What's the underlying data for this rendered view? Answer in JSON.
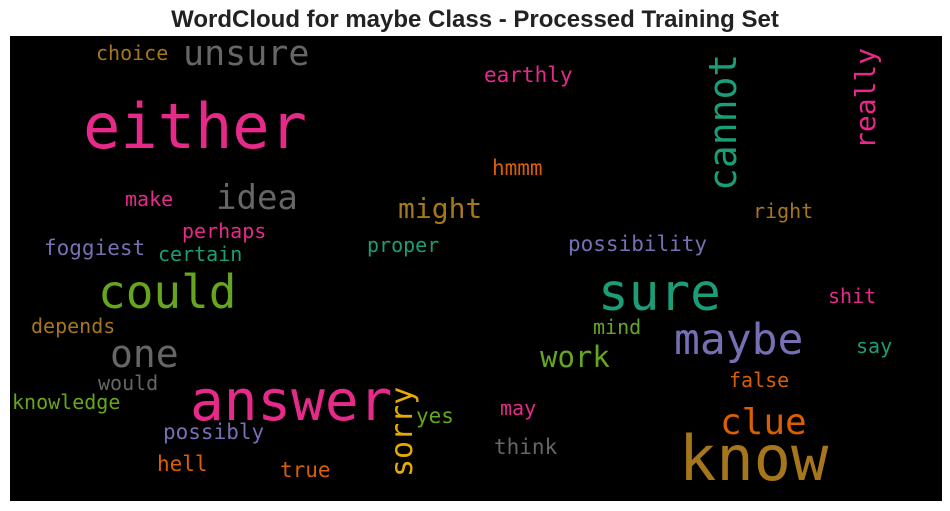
{
  "title": "WordCloud for maybe Class - Processed Training Set",
  "colors": {
    "background": "#000000",
    "pink": "#e7298a",
    "green": "#1b9e77",
    "olive": "#66a61e",
    "purple": "#7570b3",
    "gray": "#666666",
    "orange": "#d95f02",
    "gold": "#a6761d",
    "yellow": "#e6ab02"
  },
  "words": [
    {
      "text": "unsure",
      "color": "gray"
    },
    {
      "text": "choice",
      "color": "gold"
    },
    {
      "text": "either",
      "color": "pink"
    },
    {
      "text": "earthly",
      "color": "pink"
    },
    {
      "text": "cannot",
      "color": "green"
    },
    {
      "text": "really",
      "color": "pink"
    },
    {
      "text": "hmmm",
      "color": "orange"
    },
    {
      "text": "make",
      "color": "pink"
    },
    {
      "text": "idea",
      "color": "gray"
    },
    {
      "text": "might",
      "color": "gold"
    },
    {
      "text": "right",
      "color": "gold"
    },
    {
      "text": "perhaps",
      "color": "pink"
    },
    {
      "text": "foggiest",
      "color": "purple"
    },
    {
      "text": "certain",
      "color": "green"
    },
    {
      "text": "proper",
      "color": "green"
    },
    {
      "text": "possibility",
      "color": "purple"
    },
    {
      "text": "could",
      "color": "olive"
    },
    {
      "text": "sure",
      "color": "green"
    },
    {
      "text": "shit",
      "color": "pink"
    },
    {
      "text": "depends",
      "color": "gold"
    },
    {
      "text": "mind",
      "color": "olive"
    },
    {
      "text": "one",
      "color": "gray"
    },
    {
      "text": "maybe",
      "color": "purple"
    },
    {
      "text": "say",
      "color": "green"
    },
    {
      "text": "work",
      "color": "olive"
    },
    {
      "text": "false",
      "color": "orange"
    },
    {
      "text": "would",
      "color": "gray"
    },
    {
      "text": "answer",
      "color": "pink"
    },
    {
      "text": "knowledge",
      "color": "olive"
    },
    {
      "text": "sorry",
      "color": "yellow"
    },
    {
      "text": "yes",
      "color": "olive"
    },
    {
      "text": "may",
      "color": "pink"
    },
    {
      "text": "clue",
      "color": "orange"
    },
    {
      "text": "possibly",
      "color": "purple"
    },
    {
      "text": "think",
      "color": "gray"
    },
    {
      "text": "know",
      "color": "gold"
    },
    {
      "text": "hell",
      "color": "orange"
    },
    {
      "text": "true",
      "color": "orange"
    }
  ]
}
